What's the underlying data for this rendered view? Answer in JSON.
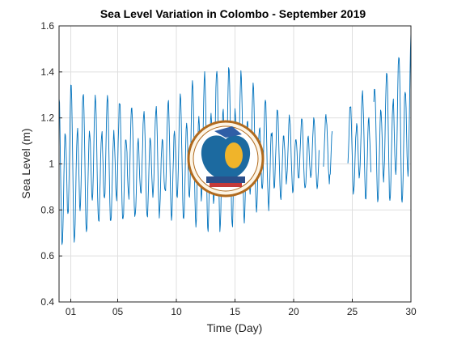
{
  "chart_data": {
    "type": "line",
    "title": "Sea Level Variation in Colombo - September 2019",
    "xlabel": "Time (Day)",
    "ylabel": "Sea Level (m)",
    "xlim": [
      0,
      30
    ],
    "ylim": [
      0.4,
      1.6
    ],
    "x_ticks": [
      1,
      5,
      10,
      15,
      20,
      25,
      30
    ],
    "x_tick_labels": [
      "01",
      "05",
      "10",
      "15",
      "20",
      "25",
      "30"
    ],
    "y_ticks": [
      0.4,
      0.6,
      0.8,
      1.0,
      1.2,
      1.4,
      1.6
    ],
    "y_tick_labels": [
      "0.4",
      "0.6",
      "0.8",
      "1",
      "1.2",
      "1.4",
      "1.6"
    ],
    "grid": true,
    "series": [
      {
        "color": "#0072BD",
        "sampling": "hourly, Day 0 to 30",
        "envelope_days": [
          0,
          1,
          3,
          5,
          7,
          9,
          11,
          13,
          15,
          17,
          19,
          21,
          23,
          24,
          25,
          27,
          29,
          30
        ],
        "envelope_high": [
          1.32,
          1.36,
          1.31,
          1.29,
          1.24,
          1.27,
          1.35,
          1.43,
          1.45,
          1.33,
          1.23,
          1.2,
          1.22,
          1.2,
          1.28,
          1.36,
          1.5,
          1.58
        ],
        "envelope_low": [
          0.6,
          0.6,
          0.7,
          0.72,
          0.74,
          0.75,
          0.7,
          0.66,
          0.68,
          0.75,
          0.82,
          0.87,
          0.9,
          0.92,
          0.85,
          0.8,
          0.78,
          0.75
        ],
        "gaps_days": [
          [
            22.2,
            22.5
          ],
          [
            23.3,
            24.6
          ],
          [
            26.6,
            26.8
          ]
        ]
      }
    ]
  }
}
